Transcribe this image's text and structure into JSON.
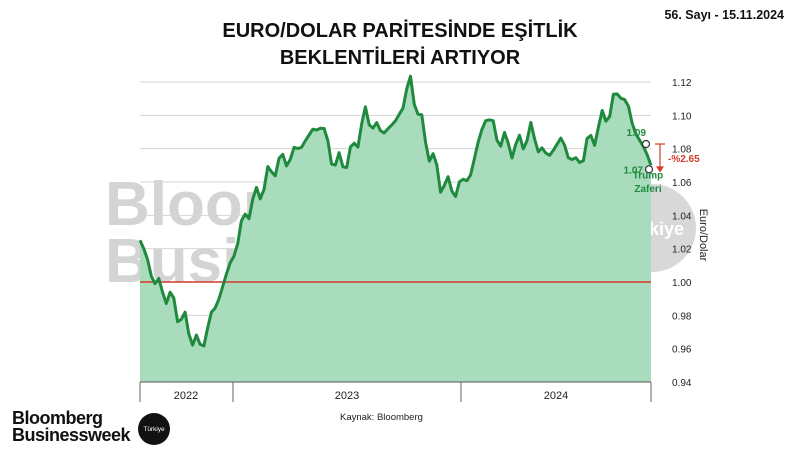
{
  "issue_label": "56. Sayı - 15.11.2024",
  "title_line1": "EURO/DOLAR PARİTESİNDE EŞİTLİK",
  "title_line2": "BEKLENTİLERİ ARTIYOR",
  "source": "Kaynak: Bloomberg",
  "watermark": {
    "line1": "Bloomberg",
    "line2": "Businessweek",
    "badge": "Türkiye"
  },
  "logo": {
    "line1": "Bloomberg",
    "line2": "Businessweek",
    "badge": "Türkiye"
  },
  "colors": {
    "line": "#1f8a3d",
    "area": "#a9dcbc",
    "parity": "#d23a2a",
    "annotation": "#d23a2a",
    "label_green": "#1f8a3d"
  },
  "chart_data": {
    "type": "area",
    "ylabel": "Euro/Dolar",
    "ylim": [
      0.94,
      1.12
    ],
    "yticks": [
      "0.94",
      "0.96",
      "0.98",
      "1.00",
      "1.02",
      "1.04",
      "1.06",
      "1.08",
      "1.10",
      "1.12"
    ],
    "grid": true,
    "x_axis_labels": [
      "2022",
      "2023",
      "2024"
    ],
    "reference_line": 1.0,
    "series": [
      {
        "x": [
          "2022-01",
          "2022-02",
          "2022-03",
          "2022-04",
          "2022-05",
          "2022-06",
          "2022-07",
          "2022-08",
          "2022-09",
          "2022-10",
          "2022-11",
          "2022-12",
          "2023-01",
          "2023-02",
          "2023-03",
          "2023-04",
          "2023-05",
          "2023-06",
          "2023-07",
          "2023-08",
          "2023-09",
          "2023-10",
          "2023-11",
          "2023-12",
          "2024-01",
          "2024-02",
          "2024-03",
          "2024-04",
          "2024-05",
          "2024-06",
          "2024-07",
          "2024-08",
          "2024-09",
          "2024-10",
          "2024-11"
        ],
        "values": [
          1.025,
          1.0,
          0.99,
          0.975,
          0.96,
          0.985,
          1.01,
          1.04,
          1.055,
          1.07,
          1.075,
          1.085,
          1.095,
          1.07,
          1.075,
          1.1,
          1.09,
          1.095,
          1.12,
          1.085,
          1.06,
          1.055,
          1.065,
          1.1,
          1.085,
          1.08,
          1.09,
          1.075,
          1.085,
          1.07,
          1.085,
          1.1,
          1.115,
          1.09,
          1.07
        ]
      }
    ],
    "annotations": {
      "high_value": "1.09",
      "low_value": "1.07",
      "change": "-%2.65",
      "event_line1": "Trump",
      "event_line2": "Zaferi"
    }
  }
}
